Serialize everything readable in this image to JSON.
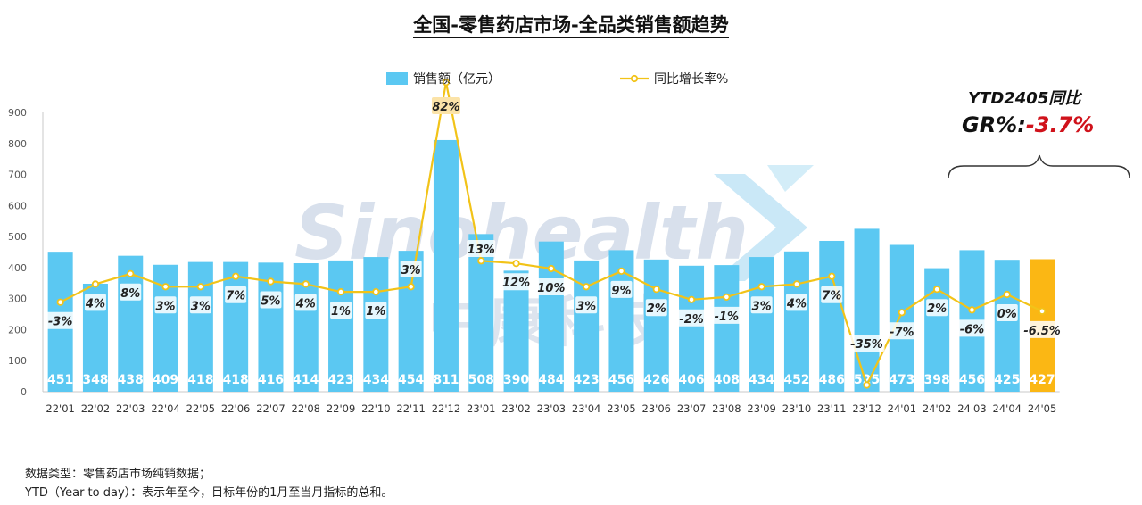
{
  "page_title": "全国-零售药店市场-全品类销售额趋势",
  "ytd_label": "YTD2405同比",
  "ytd_gr_label": "GR%:",
  "ytd_gr_value": "-3.7%",
  "watermark": {
    "en": "Sinohealth",
    "cn": "中康科技"
  },
  "footnotes": [
    "数据类型：零售药店市场纯销数据；",
    "YTD（Year to day）：表示年至今，目标年份的1月至当月指标的总和。"
  ],
  "colors": {
    "bar": "#5bc8f2",
    "bar_highlight": "#fbb714",
    "line": "#f2c318",
    "label_box": "#fbe3a8"
  },
  "chart_data": {
    "type": "bar",
    "title": "全国-零售药店市场-全品类销售额趋势",
    "legend_position": "top-center",
    "grid": false,
    "ylim": [
      0,
      900
    ],
    "yticks": [
      0,
      100,
      200,
      300,
      400,
      500,
      600,
      700,
      800,
      900
    ],
    "categories": [
      "22'01",
      "22'02",
      "22'03",
      "22'04",
      "22'05",
      "22'06",
      "22'07",
      "22'08",
      "22'09",
      "22'10",
      "22'11",
      "22'12",
      "23'01",
      "23'02",
      "23'03",
      "23'04",
      "23'05",
      "23'06",
      "23'07",
      "23'08",
      "23'09",
      "23'10",
      "23'11",
      "23'12",
      "24'01",
      "24'02",
      "24'03",
      "24'04",
      "24'05"
    ],
    "series": [
      {
        "name": "销售额（亿元）",
        "type": "bar",
        "values": [
          451,
          348,
          438,
          409,
          418,
          418,
          416,
          414,
          423,
          434,
          454,
          811,
          508,
          390,
          484,
          423,
          456,
          426,
          406,
          408,
          434,
          452,
          486,
          525,
          473,
          398,
          456,
          425,
          427
        ],
        "labels": [
          "451",
          "348",
          "438",
          "409",
          "418",
          "418",
          "416",
          "414",
          "423",
          "434",
          "454",
          "811",
          "508",
          "390",
          "484",
          "423",
          "456",
          "426",
          "406",
          "408",
          "434",
          "452",
          "486",
          "525",
          "473",
          "398",
          "456",
          "425",
          "427"
        ]
      },
      {
        "name": "同比增长率%",
        "type": "line",
        "values": [
          -3,
          4,
          8,
          3,
          3,
          7,
          5,
          4,
          1,
          1,
          3,
          82,
          13,
          12,
          10,
          3,
          9,
          2,
          -2,
          -1,
          3,
          4,
          7,
          -35,
          -7,
          2,
          -6,
          0,
          -6.5
        ],
        "labels": [
          "-3%",
          "4%",
          "8%",
          "3%",
          "3%",
          "7%",
          "5%",
          "4%",
          "1%",
          "1%",
          "3%",
          "82%",
          "13%",
          "12%",
          "10%",
          "3%",
          "9%",
          "2%",
          "-2%",
          "-1%",
          "3%",
          "4%",
          "7%",
          "-35%",
          "-7%",
          "2%",
          "-6%",
          "0%",
          "-6.5%"
        ]
      }
    ]
  }
}
